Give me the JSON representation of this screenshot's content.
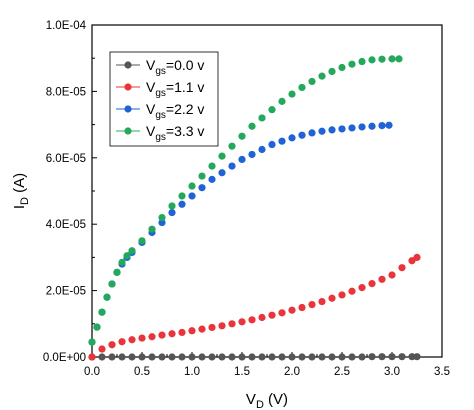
{
  "chart_data": {
    "type": "scatter",
    "xlabel": {
      "main": "V",
      "sub": "D",
      "unit": " (V)"
    },
    "ylabel": {
      "main": "I",
      "sub": "D",
      "unit": " (A)"
    },
    "xlim": [
      0.0,
      3.5
    ],
    "ylim": [
      0.0,
      0.0001
    ],
    "x_ticks": [
      0.0,
      0.5,
      1.0,
      1.5,
      2.0,
      2.5,
      3.0,
      3.5
    ],
    "x_tick_labels": [
      "0.0",
      "0.5",
      "1.0",
      "1.5",
      "2.0",
      "2.5",
      "3.0",
      "3.5"
    ],
    "y_ticks": [
      0,
      2e-05,
      4e-05,
      6e-05,
      8e-05,
      0.0001
    ],
    "y_tick_labels": [
      "0.0E+00",
      "2.0E-05",
      "4.0E-05",
      "6.0E-05",
      "8.0E-05",
      "1.0E-04"
    ],
    "grid": false,
    "legend_position": "top-left",
    "series": [
      {
        "name": "Vgs=0.0 v",
        "legend": {
          "main": "V",
          "sub": "gs",
          "rest": "=0.0 v"
        },
        "color": "#555555",
        "x": [
          0.0,
          0.1,
          0.2,
          0.3,
          0.4,
          0.5,
          0.6,
          0.7,
          0.8,
          0.9,
          1.0,
          1.1,
          1.2,
          1.3,
          1.4,
          1.5,
          1.6,
          1.7,
          1.8,
          1.9,
          2.0,
          2.1,
          2.2,
          2.3,
          2.4,
          2.5,
          2.6,
          2.7,
          2.8,
          2.9,
          3.0,
          3.1,
          3.2,
          3.25
        ],
        "y": [
          0.0,
          0.0,
          0.0,
          0.0,
          0.0,
          0.0,
          0.0,
          0.0,
          0.0,
          0.0,
          0.0,
          0.0,
          0.0,
          0.0,
          0.0,
          0.0,
          0.0,
          0.0,
          0.0,
          0.0,
          0.0,
          0.0,
          0.0,
          0.0,
          0.0,
          0.0,
          0.0,
          0.0,
          1e-07,
          1e-07,
          1e-07,
          1e-07,
          1e-07,
          1e-07
        ]
      },
      {
        "name": "Vgs=1.1 v",
        "legend": {
          "main": "V",
          "sub": "gs",
          "rest": "=1.1 v"
        },
        "color": "#e8343a",
        "x": [
          0.0,
          0.1,
          0.2,
          0.3,
          0.4,
          0.5,
          0.6,
          0.7,
          0.8,
          0.9,
          1.0,
          1.1,
          1.2,
          1.3,
          1.4,
          1.5,
          1.6,
          1.7,
          1.8,
          1.9,
          2.0,
          2.1,
          2.2,
          2.3,
          2.4,
          2.5,
          2.6,
          2.7,
          2.8,
          2.9,
          3.0,
          3.1,
          3.2,
          3.25
        ],
        "y": [
          0.0,
          2.4e-06,
          3.7e-06,
          4.6e-06,
          5.2e-06,
          5.7e-06,
          6.1e-06,
          6.6e-06,
          7e-06,
          7.4e-06,
          7.9e-06,
          8.4e-06,
          8.9e-06,
          9.4e-06,
          1e-05,
          1.06e-05,
          1.12e-05,
          1.19e-05,
          1.26e-05,
          1.33e-05,
          1.41e-05,
          1.49e-05,
          1.58e-05,
          1.67e-05,
          1.77e-05,
          1.87e-05,
          1.98e-05,
          2.09e-05,
          2.21e-05,
          2.34e-05,
          2.47e-05,
          2.69e-05,
          2.9e-05,
          3e-05
        ]
      },
      {
        "name": "Vgs=2.2 v",
        "legend": {
          "main": "V",
          "sub": "gs",
          "rest": "=2.2 v"
        },
        "color": "#1f63d6",
        "x": [
          0.0,
          0.05,
          0.1,
          0.15,
          0.2,
          0.25,
          0.3,
          0.35,
          0.4,
          0.5,
          0.6,
          0.7,
          0.8,
          0.9,
          1.0,
          1.1,
          1.2,
          1.3,
          1.4,
          1.5,
          1.6,
          1.7,
          1.8,
          1.9,
          2.0,
          2.1,
          2.2,
          2.3,
          2.4,
          2.5,
          2.6,
          2.7,
          2.8,
          2.9,
          2.97
        ],
        "y": [
          4.5e-06,
          9e-06,
          1.35e-05,
          1.8e-05,
          2.2e-05,
          2.55e-05,
          2.8e-05,
          3e-05,
          3.15e-05,
          3.45e-05,
          3.75e-05,
          4.05e-05,
          4.35e-05,
          4.6e-05,
          4.85e-05,
          5.1e-05,
          5.35e-05,
          5.55e-05,
          5.75e-05,
          5.95e-05,
          6.1e-05,
          6.25e-05,
          6.4e-05,
          6.5e-05,
          6.6e-05,
          6.68e-05,
          6.75e-05,
          6.8e-05,
          6.84e-05,
          6.87e-05,
          6.9e-05,
          6.93e-05,
          6.95e-05,
          6.97e-05,
          6.98e-05
        ]
      },
      {
        "name": "Vgs=3.3 v",
        "legend": {
          "main": "V",
          "sub": "gs",
          "rest": "=3.3 v"
        },
        "color": "#23a85c",
        "x": [
          0.0,
          0.05,
          0.1,
          0.15,
          0.2,
          0.25,
          0.3,
          0.35,
          0.4,
          0.5,
          0.6,
          0.7,
          0.8,
          0.9,
          1.0,
          1.1,
          1.2,
          1.3,
          1.4,
          1.5,
          1.6,
          1.7,
          1.8,
          1.9,
          2.0,
          2.1,
          2.2,
          2.3,
          2.4,
          2.5,
          2.6,
          2.7,
          2.8,
          2.9,
          3.0,
          3.07
        ],
        "y": [
          4.5e-06,
          9e-06,
          1.35e-05,
          1.8e-05,
          2.2e-05,
          2.55e-05,
          2.85e-05,
          3.05e-05,
          3.2e-05,
          3.5e-05,
          3.85e-05,
          4.2e-05,
          4.55e-05,
          4.85e-05,
          5.15e-05,
          5.45e-05,
          5.75e-05,
          6.05e-05,
          6.35e-05,
          6.65e-05,
          6.95e-05,
          7.2e-05,
          7.45e-05,
          7.7e-05,
          7.92e-05,
          8.12e-05,
          8.3e-05,
          8.46e-05,
          8.6e-05,
          8.72e-05,
          8.82e-05,
          8.9e-05,
          8.95e-05,
          8.97e-05,
          8.98e-05,
          8.98e-05
        ]
      }
    ]
  }
}
